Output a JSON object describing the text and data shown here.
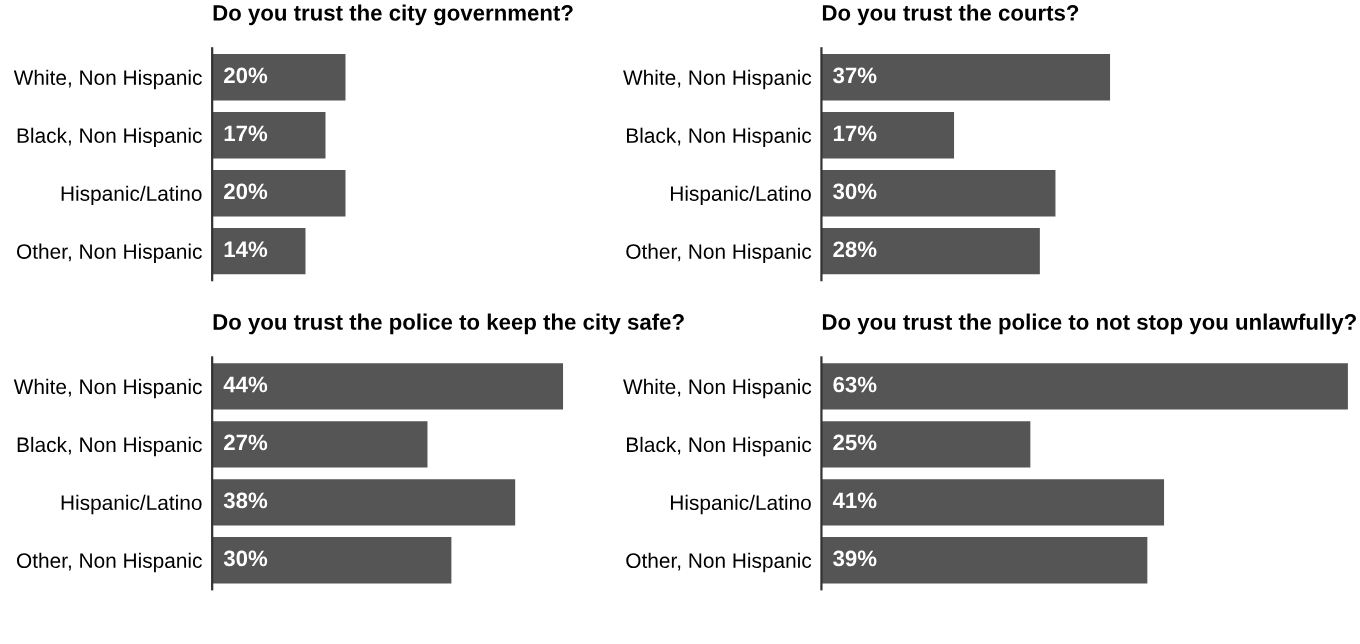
{
  "chart_data": [
    {
      "type": "bar",
      "orientation": "horizontal",
      "title": "Do you trust the city government?",
      "categories": [
        "White, Non Hispanic",
        "Black, Non Hispanic",
        "Hispanic/Latino",
        "Other, Non Hispanic"
      ],
      "values": [
        20,
        17,
        20,
        14
      ],
      "color": "#555555",
      "data_labels": true,
      "value_labels": [
        "20%",
        "17%",
        "20%",
        "14%"
      ],
      "grid": false,
      "tick_labels": "y"
    },
    {
      "type": "bar",
      "orientation": "horizontal",
      "title": "Do you trust the courts?",
      "categories": [
        "White, Non Hispanic",
        "Black, Non Hispanic",
        "Hispanic/Latino",
        "Other, Non Hispanic"
      ],
      "values": [
        37,
        17,
        30,
        28
      ],
      "color": "#555555",
      "data_labels": true,
      "value_labels": [
        "37%",
        "17%",
        "30%",
        "28%"
      ],
      "grid": false,
      "tick_labels": "y"
    },
    {
      "type": "bar",
      "orientation": "horizontal",
      "title": "Do you trust the police to keep the city safe?",
      "categories": [
        "White, Non Hispanic",
        "Black, Non Hispanic",
        "Hispanic/Latino",
        "Other, Non Hispanic"
      ],
      "values": [
        44,
        27,
        38,
        30
      ],
      "color": "#555555",
      "data_labels": true,
      "value_labels": [
        "44%",
        "27%",
        "38%",
        "30%"
      ],
      "grid": false,
      "tick_labels": "y"
    },
    {
      "type": "bar",
      "orientation": "horizontal",
      "title": "Do you trust the police to not stop you unlawfully?",
      "categories": [
        "White, Non Hispanic",
        "Black, Non Hispanic",
        "Hispanic/Latino",
        "Other, Non Hispanic"
      ],
      "values": [
        63,
        25,
        41,
        39
      ],
      "color": "#555555",
      "data_labels": true,
      "value_labels": [
        "63%",
        "25%",
        "41%",
        "39%"
      ],
      "grid": false,
      "tick_labels": "y"
    }
  ]
}
